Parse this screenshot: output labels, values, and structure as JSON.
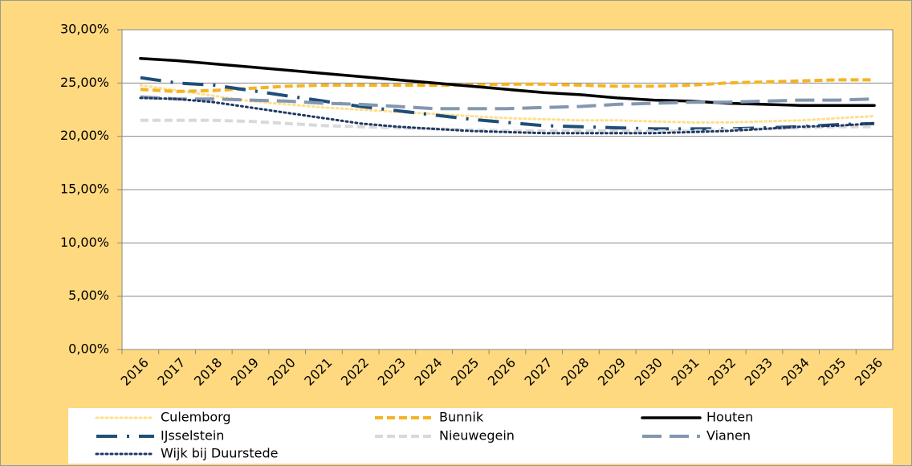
{
  "chart_data": {
    "type": "line",
    "categories": [
      "2016",
      "2017",
      "2018",
      "2019",
      "2020",
      "2021",
      "2022",
      "2023",
      "2024",
      "2025",
      "2026",
      "2027",
      "2028",
      "2029",
      "2030",
      "2031",
      "2032",
      "2033",
      "2034",
      "2035",
      "2036"
    ],
    "ylim": [
      0,
      30
    ],
    "yticks": [
      {
        "value": 0,
        "label": "0,00%"
      },
      {
        "value": 5,
        "label": "5,00%"
      },
      {
        "value": 10,
        "label": "10,00%"
      },
      {
        "value": 15,
        "label": "15,00%"
      },
      {
        "value": 20,
        "label": "20,00%"
      },
      {
        "value": 25,
        "label": "25,00%"
      },
      {
        "value": 30,
        "label": "30,00%"
      }
    ],
    "grid": true,
    "legend": "bottom",
    "series": [
      {
        "name": "Culemborg",
        "color": "#FFE08A",
        "style": "dotted",
        "values": [
          24.8,
          24.3,
          23.8,
          23.3,
          23.0,
          22.7,
          22.5,
          22.3,
          22.1,
          21.9,
          21.7,
          21.6,
          21.5,
          21.5,
          21.4,
          21.3,
          21.3,
          21.4,
          21.5,
          21.7,
          21.9
        ]
      },
      {
        "name": "Bunnik",
        "color": "#F5B324",
        "style": "dashed",
        "values": [
          24.4,
          24.2,
          24.3,
          24.5,
          24.7,
          24.8,
          24.8,
          24.8,
          24.8,
          24.8,
          24.9,
          24.9,
          24.8,
          24.7,
          24.7,
          24.8,
          25.0,
          25.1,
          25.2,
          25.3,
          25.3
        ]
      },
      {
        "name": "Houten",
        "color": "#000000",
        "style": "solid",
        "values": [
          27.3,
          27.1,
          26.8,
          26.5,
          26.2,
          25.9,
          25.6,
          25.3,
          25.0,
          24.7,
          24.4,
          24.1,
          23.9,
          23.6,
          23.4,
          23.3,
          23.1,
          23.0,
          22.9,
          22.9,
          22.9
        ]
      },
      {
        "name": "IJsselstein",
        "color": "#1F4E79",
        "style": "dash-dot",
        "values": [
          25.5,
          25.0,
          24.8,
          24.3,
          23.8,
          23.3,
          22.8,
          22.4,
          22.0,
          21.6,
          21.3,
          21.0,
          20.9,
          20.8,
          20.7,
          20.7,
          20.7,
          20.8,
          20.9,
          21.1,
          21.2
        ]
      },
      {
        "name": "Nieuwegein",
        "color": "#D9D9D9",
        "style": "dashed",
        "values": [
          21.5,
          21.5,
          21.5,
          21.4,
          21.2,
          21.0,
          20.9,
          20.8,
          20.7,
          20.6,
          20.5,
          20.5,
          20.5,
          20.5,
          20.5,
          20.5,
          20.6,
          20.7,
          20.8,
          20.9,
          20.9
        ]
      },
      {
        "name": "Vianen",
        "color": "#8497B0",
        "style": "long-dashed",
        "values": [
          23.7,
          23.5,
          23.5,
          23.4,
          23.3,
          23.1,
          23.0,
          22.8,
          22.6,
          22.6,
          22.6,
          22.7,
          22.8,
          23.0,
          23.1,
          23.2,
          23.2,
          23.3,
          23.4,
          23.4,
          23.5
        ]
      },
      {
        "name": "Wijk bij Duurstede",
        "color": "#1F3864",
        "style": "dotted",
        "values": [
          23.6,
          23.5,
          23.2,
          22.7,
          22.2,
          21.7,
          21.2,
          20.9,
          20.7,
          20.5,
          20.4,
          20.3,
          20.3,
          20.3,
          20.3,
          20.4,
          20.5,
          20.7,
          20.9,
          21.0,
          21.2
        ]
      }
    ]
  }
}
